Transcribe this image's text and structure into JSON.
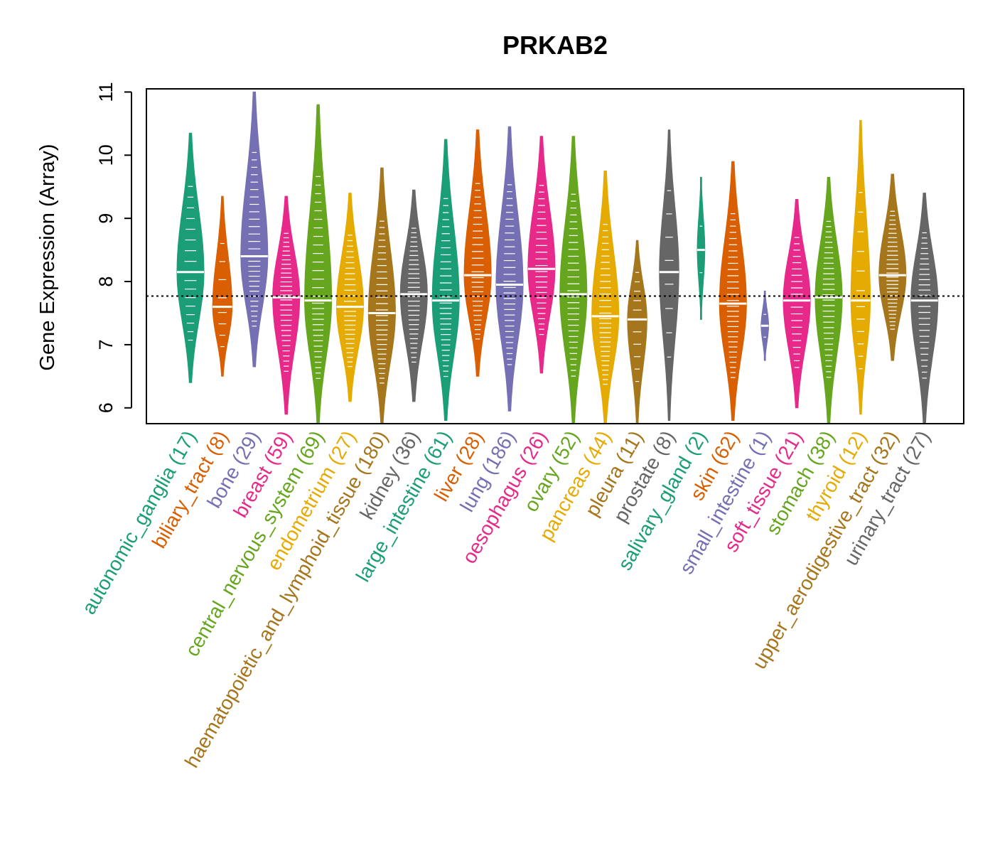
{
  "chart_data": {
    "type": "violin",
    "title": "PRKAB2",
    "ylabel": "Gene Expression (Array)",
    "xlabel": "",
    "ylim": [
      5.75,
      11.05
    ],
    "yticks": [
      6,
      7,
      8,
      9,
      10,
      11
    ],
    "reference_line": 7.77,
    "categories": [
      {
        "name": "autonomic_ganglia",
        "n": 17,
        "color": "#1b9e77",
        "median": 8.15,
        "min": 6.4,
        "max": 10.35
      },
      {
        "name": "biliary_tract",
        "n": 8,
        "color": "#d95f02",
        "median": 7.6,
        "min": 6.5,
        "max": 9.35
      },
      {
        "name": "bone",
        "n": 29,
        "color": "#7570b3",
        "median": 8.4,
        "min": 6.65,
        "max": 11.0
      },
      {
        "name": "breast",
        "n": 59,
        "color": "#e7298a",
        "median": 7.75,
        "min": 5.9,
        "max": 9.35
      },
      {
        "name": "central_nervous_system",
        "n": 69,
        "color": "#66a61e",
        "median": 7.7,
        "min": 5.75,
        "max": 10.8
      },
      {
        "name": "endometrium",
        "n": 27,
        "color": "#e6ab02",
        "median": 7.6,
        "min": 6.1,
        "max": 9.4
      },
      {
        "name": "haematopoietic_and_lymphoid_tissue",
        "n": 180,
        "color": "#a6761d",
        "median": 7.5,
        "min": 5.75,
        "max": 9.8
      },
      {
        "name": "kidney",
        "n": 36,
        "color": "#666666",
        "median": 7.8,
        "min": 6.1,
        "max": 9.45
      },
      {
        "name": "large_intestine",
        "n": 61,
        "color": "#1b9e77",
        "median": 7.7,
        "min": 5.8,
        "max": 10.25
      },
      {
        "name": "liver",
        "n": 28,
        "color": "#d95f02",
        "median": 8.1,
        "min": 6.5,
        "max": 10.4
      },
      {
        "name": "lung",
        "n": 186,
        "color": "#7570b3",
        "median": 7.95,
        "min": 5.95,
        "max": 10.45
      },
      {
        "name": "oesophagus",
        "n": 26,
        "color": "#e7298a",
        "median": 8.2,
        "min": 6.55,
        "max": 10.3
      },
      {
        "name": "ovary",
        "n": 52,
        "color": "#66a61e",
        "median": 7.8,
        "min": 5.75,
        "max": 10.3
      },
      {
        "name": "pancreas",
        "n": 44,
        "color": "#e6ab02",
        "median": 7.45,
        "min": 5.75,
        "max": 9.75
      },
      {
        "name": "pleura",
        "n": 11,
        "color": "#a6761d",
        "median": 7.4,
        "min": 5.75,
        "max": 8.65
      },
      {
        "name": "prostate",
        "n": 8,
        "color": "#666666",
        "median": 8.15,
        "min": 5.8,
        "max": 10.4
      },
      {
        "name": "salivary_gland",
        "n": 2,
        "color": "#1b9e77",
        "median": 8.5,
        "min": 7.4,
        "max": 9.65
      },
      {
        "name": "skin",
        "n": 62,
        "color": "#d95f02",
        "median": 7.65,
        "min": 5.8,
        "max": 9.9
      },
      {
        "name": "small_intestine",
        "n": 1,
        "color": "#7570b3",
        "median": 7.3,
        "min": 6.75,
        "max": 7.85
      },
      {
        "name": "soft_tissue",
        "n": 21,
        "color": "#e7298a",
        "median": 7.7,
        "min": 6.0,
        "max": 9.3
      },
      {
        "name": "stomach",
        "n": 38,
        "color": "#66a61e",
        "median": 7.75,
        "min": 5.75,
        "max": 9.65
      },
      {
        "name": "thyroid",
        "n": 12,
        "color": "#e6ab02",
        "median": 7.7,
        "min": 5.9,
        "max": 10.55
      },
      {
        "name": "upper_aerodigestive_tract",
        "n": 32,
        "color": "#a6761d",
        "median": 8.1,
        "min": 6.75,
        "max": 9.7
      },
      {
        "name": "urinary_tract",
        "n": 27,
        "color": "#666666",
        "median": 7.7,
        "min": 5.75,
        "max": 9.4
      }
    ]
  }
}
